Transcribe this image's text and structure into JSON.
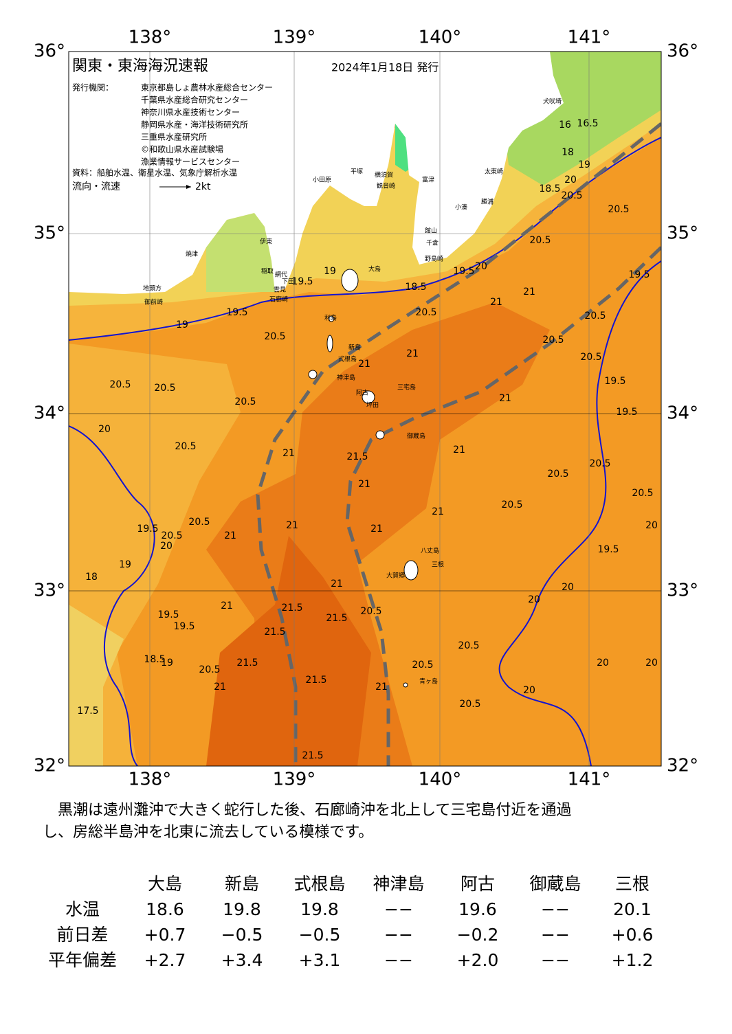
{
  "header": {
    "title": "関東・東海海況速報",
    "date": "2024年1月18日 発行",
    "issuers_label": "発行機関：",
    "issuers": [
      "東京都島しょ農林水産総合センター",
      "千葉県水産総合研究センター",
      "神奈川県水産技術センター",
      "静岡県水産・海洋技術研究所",
      "三重県水産研究所",
      "©和歌山県水産試験場",
      "漁業情報サービスセンター"
    ],
    "source": "資料：船舶水温、衛星水温、気象庁解析水温",
    "flow_label": "流向・流速",
    "flow_scale": "2kt"
  },
  "map": {
    "lat_labels": [
      "36°",
      "35°",
      "34°",
      "33°",
      "32°"
    ],
    "lon_labels": [
      "138°",
      "139°",
      "140°",
      "141°"
    ],
    "places": [
      "犬吠埼",
      "太東崎",
      "小湊",
      "勝浦",
      "館山",
      "千倉",
      "野島崎",
      "富津",
      "横須賀",
      "観音崎",
      "平塚",
      "小田原",
      "伊東",
      "稲取",
      "下田",
      "石廊崎",
      "雲見",
      "焼津",
      "御前崎",
      "地頭方",
      "利島",
      "新島",
      "式根島",
      "神津島",
      "三宅島",
      "阿古",
      "坪田",
      "御蔵島",
      "八丈島",
      "三根",
      "大賀郷",
      "青ヶ島",
      "大島",
      "網代"
    ],
    "contour_labels": [
      "16",
      "16.5",
      "18",
      "19",
      "18.5",
      "20",
      "20.5",
      "20.5",
      "20.5",
      "19.5",
      "20",
      "19.5",
      "18.5",
      "19",
      "19.5",
      "19",
      "19.5",
      "20.5",
      "20.5",
      "20.5",
      "20.5",
      "20",
      "20.5",
      "21",
      "21",
      "20.5",
      "21",
      "21",
      "20.5",
      "20.5",
      "20.5",
      "19.5",
      "19.5",
      "21",
      "21",
      "21.5",
      "21",
      "21",
      "20.5",
      "20.5",
      "20.5",
      "20.5",
      "21",
      "21",
      "21",
      "21",
      "20.5",
      "20.5",
      "19.5",
      "20",
      "19.5",
      "20",
      "18",
      "19",
      "20",
      "20",
      "21",
      "21",
      "21.5",
      "21.5",
      "21.5",
      "20.5",
      "19.5",
      "19.5",
      "18.5",
      "19",
      "20.5",
      "21",
      "21.5",
      "21.5",
      "20.5",
      "20.5",
      "21",
      "20.5",
      "20",
      "20",
      "20",
      "17.5",
      "21.5"
    ]
  },
  "description": [
    "　黒潮は遠州灘沖で大きく蛇行した後、石廊崎沖を北上して三宅島付近を通過",
    "し、房総半島沖を北東に流去している模様です。"
  ],
  "table": {
    "columns": [
      "大島",
      "新島",
      "式根島",
      "神津島",
      "阿古",
      "御蔵島",
      "三根"
    ],
    "rows": [
      {
        "label": "水温",
        "cells": [
          "18.6",
          "19.8",
          "19.8",
          "−−",
          "19.6",
          "−−",
          "20.1"
        ]
      },
      {
        "label": "前日差",
        "cells": [
          "+0.7",
          "−0.5",
          "−0.5",
          "−−",
          "−0.2",
          "−−",
          "+0.6"
        ]
      },
      {
        "label": "平年偏差",
        "cells": [
          "+2.7",
          "+3.4",
          "+3.1",
          "−−",
          "+2.0",
          "−−",
          "+1.2"
        ]
      }
    ]
  }
}
